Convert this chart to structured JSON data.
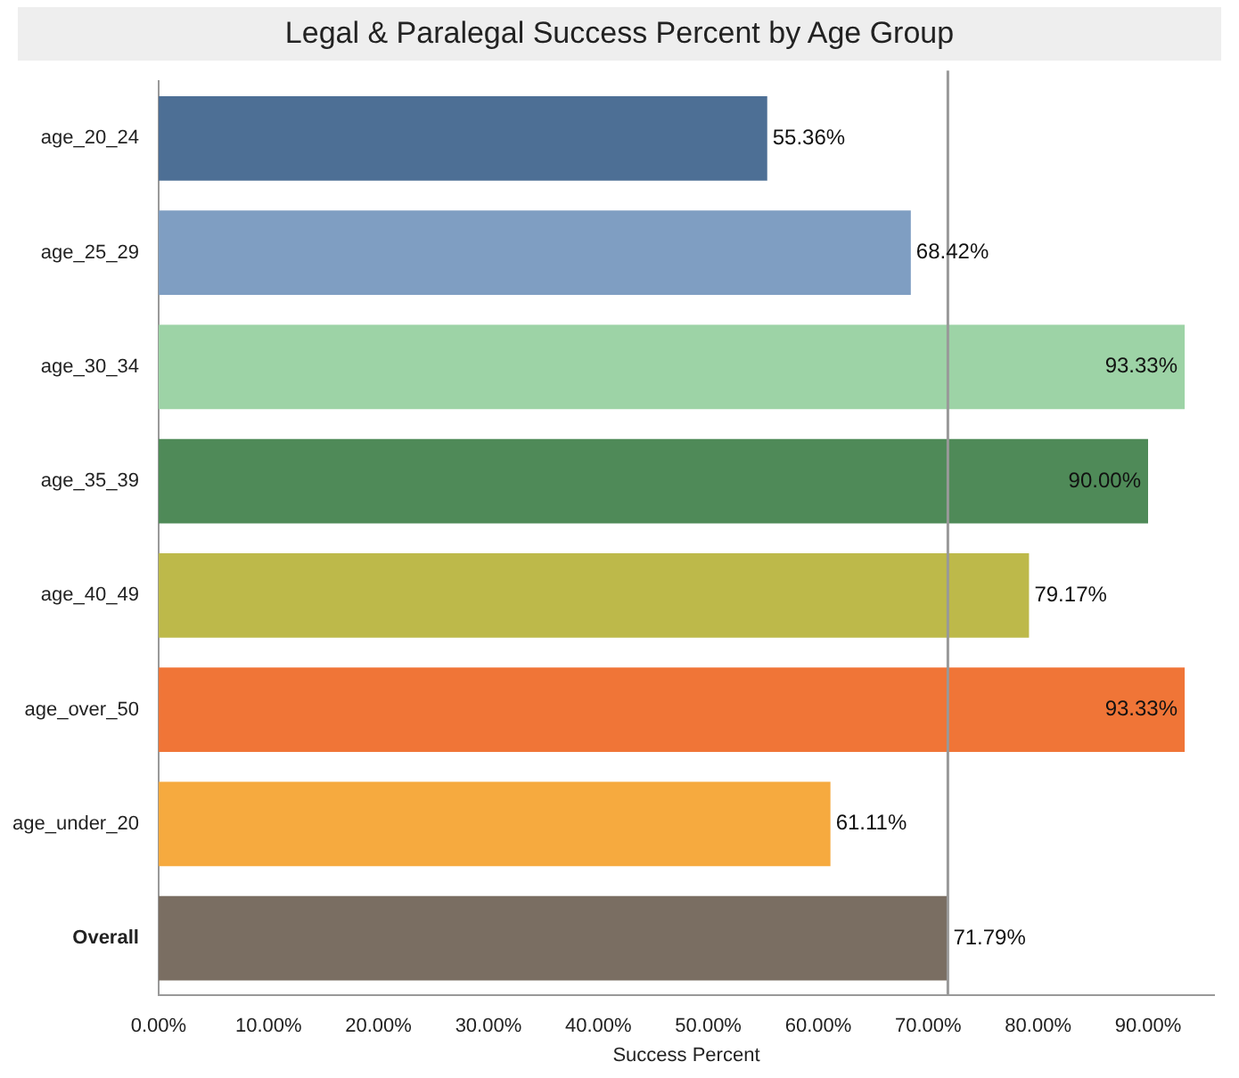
{
  "chart_data": {
    "type": "bar",
    "orientation": "horizontal",
    "title": "Legal & Paralegal Success Percent by Age Group",
    "xlabel": "Success Percent",
    "categories": [
      "age_20_24",
      "age_25_29",
      "age_30_34",
      "age_35_39",
      "age_40_49",
      "age_over_50",
      "age_under_20",
      "Overall"
    ],
    "values": [
      55.36,
      68.42,
      93.33,
      90.0,
      79.17,
      93.33,
      61.11,
      71.79
    ],
    "colors": [
      "#4d6f95",
      "#7f9ec2",
      "#9dd3a6",
      "#4f8a58",
      "#bdb94a",
      "#f07537",
      "#f6aa3f",
      "#7a6e62"
    ],
    "value_labels": [
      "55.36%",
      "68.42%",
      "93.33%",
      "90.00%",
      "79.17%",
      "93.33%",
      "61.11%",
      "71.79%"
    ],
    "xlim": [
      0,
      96
    ],
    "xticks": [
      {
        "value": 0,
        "label": "0.00%"
      },
      {
        "value": 10,
        "label": "10.00%"
      },
      {
        "value": 20,
        "label": "20.00%"
      },
      {
        "value": 30,
        "label": "30.00%"
      },
      {
        "value": 40,
        "label": "40.00%"
      },
      {
        "value": 50,
        "label": "50.00%"
      },
      {
        "value": 60,
        "label": "60.00%"
      },
      {
        "value": 70,
        "label": "70.00%"
      },
      {
        "value": 80,
        "label": "80.00%"
      },
      {
        "value": 90,
        "label": "90.00%"
      }
    ],
    "ref_lines": [
      {
        "axis": "x",
        "value": 71.79,
        "color": "#999999"
      }
    ],
    "grid": false,
    "legend": false
  }
}
